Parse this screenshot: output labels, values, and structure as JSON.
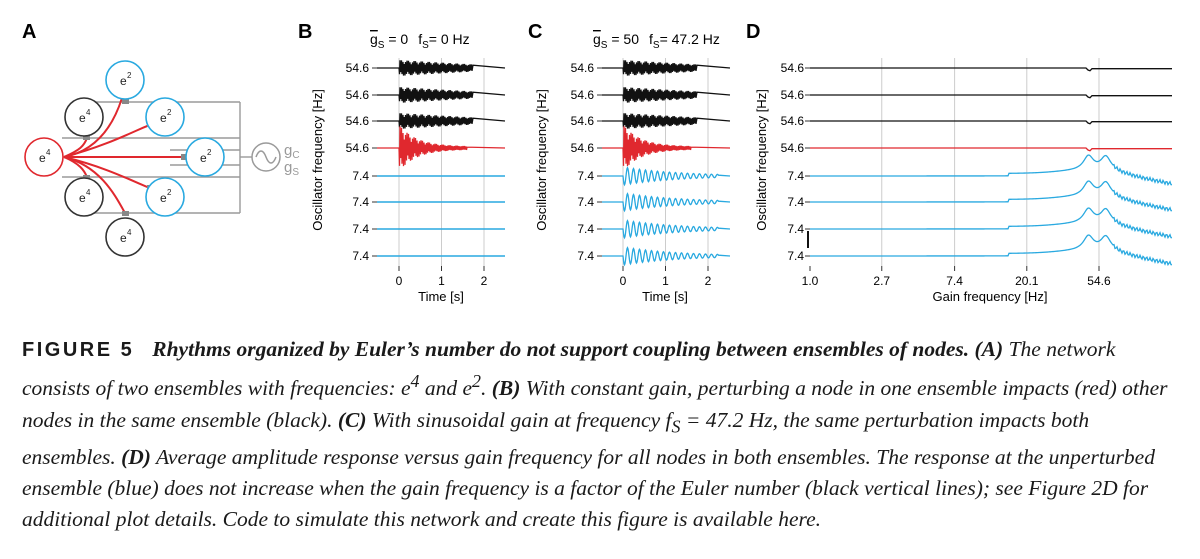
{
  "panels": {
    "A": {
      "label": "A",
      "nodes": [
        {
          "text": "e",
          "exp": "2",
          "color": "#29a9e0"
        },
        {
          "text": "e",
          "exp": "4",
          "color": "#333333"
        },
        {
          "text": "e",
          "exp": "2",
          "color": "#29a9e0"
        },
        {
          "text": "e",
          "exp": "4",
          "color": "#e0282e"
        },
        {
          "text": "e",
          "exp": "2",
          "color": "#29a9e0"
        },
        {
          "text": "e",
          "exp": "4",
          "color": "#333333"
        },
        {
          "text": "e",
          "exp": "2",
          "color": "#29a9e0"
        },
        {
          "text": "e",
          "exp": "4",
          "color": "#333333"
        }
      ],
      "gain_labels": {
        "gc": "g",
        "gc_sub": "C",
        "gs": "g",
        "gs_sub": "S"
      }
    },
    "B": {
      "label": "B",
      "title_g": "g",
      "title_g_sub": "S",
      "title_g_value": " = 0",
      "title_f": "f",
      "title_f_sub": "S",
      "title_f_value": "= 0 Hz",
      "ylabel": "Oscillator frequency [Hz]",
      "xlabel": "Time [s]",
      "ytick_labels": [
        "54.6",
        "54.6",
        "54.6",
        "54.6",
        "7.4",
        "7.4",
        "7.4",
        "7.4"
      ],
      "xtick_labels": [
        "0",
        "1",
        "2"
      ]
    },
    "C": {
      "label": "C",
      "title_g": "g",
      "title_g_sub": "S",
      "title_g_value": " = 50",
      "title_f": "f",
      "title_f_sub": "S",
      "title_f_value": "= 47.2 Hz",
      "ylabel": "Oscillator frequency [Hz]",
      "xlabel": "Time [s]",
      "ytick_labels": [
        "54.6",
        "54.6",
        "54.6",
        "54.6",
        "7.4",
        "7.4",
        "7.4",
        "7.4"
      ],
      "xtick_labels": [
        "0",
        "1",
        "2"
      ]
    },
    "D": {
      "label": "D",
      "ylabel": "Oscillator frequency [Hz]",
      "xlabel": "Gain frequency [Hz]",
      "ytick_labels": [
        "54.6",
        "54.6",
        "54.6",
        "54.6",
        "7.4",
        "7.4",
        "7.4",
        "7.4"
      ],
      "xtick_labels": [
        "1.0",
        "2.7",
        "7.4",
        "20.1",
        "54.6"
      ]
    }
  },
  "chart_data": [
    {
      "type": "line",
      "panel": "B",
      "xlabel": "Time [s]",
      "ylabel": "Oscillator frequency [Hz]",
      "x_ticks": [
        0,
        1,
        2
      ],
      "xlim": [
        -0.6,
        2.6
      ],
      "series": [
        {
          "color": "#111111",
          "kind": "sustained oscillation"
        },
        {
          "color": "#111111",
          "kind": "sustained oscillation"
        },
        {
          "color": "#111111",
          "kind": "sustained oscillation"
        },
        {
          "color": "#e0282e",
          "kind": "perturbed, decaying oscillation"
        },
        {
          "color": "#29a9e0",
          "kind": "flat"
        },
        {
          "color": "#29a9e0",
          "kind": "flat"
        },
        {
          "color": "#29a9e0",
          "kind": "flat"
        },
        {
          "color": "#29a9e0",
          "kind": "flat"
        }
      ]
    },
    {
      "type": "line",
      "panel": "C",
      "xlabel": "Time [s]",
      "ylabel": "Oscillator frequency [Hz]",
      "x_ticks": [
        0,
        1,
        2
      ],
      "xlim": [
        -0.6,
        2.6
      ],
      "series": [
        {
          "color": "#111111",
          "kind": "sustained oscillation"
        },
        {
          "color": "#111111",
          "kind": "sustained oscillation"
        },
        {
          "color": "#111111",
          "kind": "sustained oscillation"
        },
        {
          "color": "#e0282e",
          "kind": "perturbed, decaying oscillation"
        },
        {
          "color": "#29a9e0",
          "kind": "damped oscillation"
        },
        {
          "color": "#29a9e0",
          "kind": "damped oscillation"
        },
        {
          "color": "#29a9e0",
          "kind": "damped oscillation"
        },
        {
          "color": "#29a9e0",
          "kind": "damped oscillation"
        }
      ]
    },
    {
      "type": "line",
      "panel": "D",
      "xlabel": "Gain frequency [Hz]",
      "ylabel": "Oscillator frequency [Hz]",
      "x_scale": "log",
      "x_ticks": [
        1.0,
        2.7,
        7.4,
        20.1,
        54.6
      ],
      "xlim": [
        1.0,
        150
      ],
      "vertical_lines": [
        2.7,
        7.4,
        20.1,
        54.6
      ],
      "series": [
        {
          "color": "#111111",
          "kind": "flat response"
        },
        {
          "color": "#111111",
          "kind": "flat response"
        },
        {
          "color": "#111111",
          "kind": "flat response"
        },
        {
          "color": "#e0282e",
          "kind": "flat response"
        },
        {
          "color": "#29a9e0",
          "kind": "amplitude response",
          "peaks_hz": [
            47.2,
            60.0
          ]
        },
        {
          "color": "#29a9e0",
          "kind": "amplitude response",
          "peaks_hz": [
            47.2,
            60.0
          ]
        },
        {
          "color": "#29a9e0",
          "kind": "amplitude response",
          "peaks_hz": [
            47.2,
            60.0
          ]
        },
        {
          "color": "#29a9e0",
          "kind": "amplitude response",
          "peaks_hz": [
            47.2,
            60.0
          ]
        }
      ]
    }
  ],
  "caption": {
    "fig_label": "FIGURE 5",
    "title": "Rhythms organized by Euler’s number do not support coupling between ensembles of nodes.",
    "part_a_label": "(A)",
    "part_a_text1": " The network consists of two ensembles with frequencies: ",
    "e1_base": "e",
    "e1_exp": "4",
    "part_a_text2": " and ",
    "e2_base": "e",
    "e2_exp": "2",
    "part_a_text3": ". ",
    "part_b_label": "(B)",
    "part_b_text": " With constant gain, perturbing a node in one ensemble impacts (red) other nodes in the same ensemble (black). ",
    "part_c_label": "(C)",
    "part_c_text1": " With sinusoidal gain at frequency ",
    "fs_base": "f",
    "fs_sub": "S",
    "part_c_text2": " = 47.2 Hz, the same perturbation impacts both ensembles. ",
    "part_d_label": "(D)",
    "part_d_text": " Average amplitude response versus gain frequency for all nodes in both ensembles. The response at the unperturbed ensemble (blue) does not increase when the gain frequency is a factor of the Euler number (black vertical lines); see Figure 2D for additional plot details. Code to simulate this network and create this figure is available here."
  }
}
